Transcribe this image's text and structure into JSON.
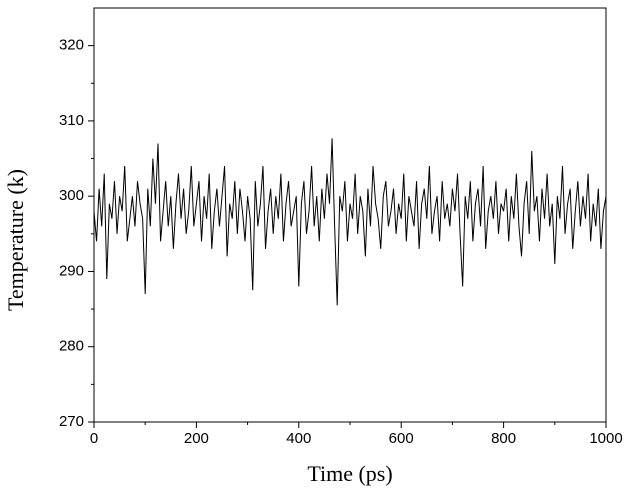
{
  "chart_data": {
    "type": "line",
    "x_label": "Time (ps)",
    "y_label": "Temperature (k)",
    "xlim": [
      0,
      1000
    ],
    "xticks": [
      0,
      200,
      400,
      600,
      800,
      1000
    ],
    "ylim": [
      270,
      325
    ],
    "yticks": [
      270,
      280,
      290,
      300,
      310,
      320
    ],
    "x_minor_ticks": [
      100,
      300,
      500,
      700,
      900
    ],
    "y_minor_ticks": [
      275,
      285,
      295,
      305,
      315
    ],
    "x": [
      0,
      5,
      10,
      15,
      20,
      25,
      30,
      35,
      40,
      45,
      50,
      55,
      60,
      65,
      70,
      75,
      80,
      85,
      90,
      95,
      100,
      105,
      110,
      115,
      120,
      125,
      130,
      135,
      140,
      145,
      150,
      155,
      160,
      165,
      170,
      175,
      180,
      185,
      190,
      195,
      200,
      205,
      210,
      215,
      220,
      225,
      230,
      235,
      240,
      245,
      250,
      255,
      260,
      265,
      270,
      275,
      280,
      285,
      290,
      295,
      300,
      305,
      310,
      315,
      320,
      325,
      330,
      335,
      340,
      345,
      350,
      355,
      360,
      365,
      370,
      375,
      380,
      385,
      390,
      395,
      400,
      405,
      410,
      415,
      420,
      425,
      430,
      435,
      440,
      445,
      450,
      455,
      460,
      465,
      470,
      475,
      480,
      485,
      490,
      495,
      500,
      505,
      510,
      515,
      520,
      525,
      530,
      535,
      540,
      545,
      550,
      555,
      560,
      565,
      570,
      575,
      580,
      585,
      590,
      595,
      600,
      605,
      610,
      615,
      620,
      625,
      630,
      635,
      640,
      645,
      650,
      655,
      660,
      665,
      670,
      675,
      680,
      685,
      690,
      695,
      700,
      705,
      710,
      715,
      720,
      725,
      730,
      735,
      740,
      745,
      750,
      755,
      760,
      765,
      770,
      775,
      780,
      785,
      790,
      795,
      800,
      805,
      810,
      815,
      820,
      825,
      830,
      835,
      840,
      845,
      850,
      855,
      860,
      865,
      870,
      875,
      880,
      885,
      890,
      895,
      900,
      905,
      910,
      915,
      920,
      925,
      930,
      935,
      940,
      945,
      950,
      955,
      960,
      965,
      970,
      975,
      980,
      985,
      990,
      995,
      1000
    ],
    "series": [
      {
        "name": "Temperature",
        "color": "#000000",
        "values": [
          298,
          294,
          301,
          296,
          303,
          289,
          299,
          297,
          302,
          295,
          300,
          298,
          304,
          294,
          297,
          300,
          296,
          302,
          299,
          297,
          287,
          301,
          296,
          305,
          299,
          307,
          294,
          298,
          302,
          296,
          300,
          293,
          299,
          303,
          297,
          301,
          295,
          298,
          304,
          296,
          299,
          302,
          294,
          300,
          297,
          303,
          293,
          298,
          301,
          296,
          300,
          304,
          292,
          299,
          297,
          302,
          295,
          301,
          298,
          294,
          300,
          297,
          287.5,
          302,
          296,
          299,
          304,
          293,
          298,
          301,
          295,
          300,
          297,
          303,
          294,
          299,
          302,
          296,
          298,
          300,
          288,
          299,
          302,
          295,
          298,
          304,
          296,
          300,
          294,
          301,
          297,
          303,
          299,
          307.7,
          296,
          285.5,
          300,
          298,
          302,
          294,
          299,
          297,
          303,
          295,
          300,
          298,
          292,
          301,
          296,
          304,
          299,
          297,
          293,
          300,
          302,
          296,
          298,
          301,
          295,
          299,
          297,
          303,
          294,
          300,
          298,
          296,
          302,
          293,
          299,
          301,
          297,
          304,
          295,
          298,
          300,
          294,
          302,
          297,
          299,
          296,
          301,
          298,
          303,
          295,
          288,
          300,
          297,
          302,
          294,
          299,
          301,
          296,
          304,
          293,
          298,
          300,
          297,
          302,
          295,
          299,
          298,
          301,
          294,
          300,
          297,
          303,
          296,
          292,
          299,
          302,
          295,
          306,
          298,
          300,
          294,
          301,
          297,
          303,
          296,
          299,
          291,
          300,
          297,
          304,
          295,
          299,
          301,
          293,
          298,
          302,
          296,
          300,
          297,
          303,
          294,
          299,
          296,
          301,
          293,
          298,
          300
        ]
      }
    ]
  }
}
